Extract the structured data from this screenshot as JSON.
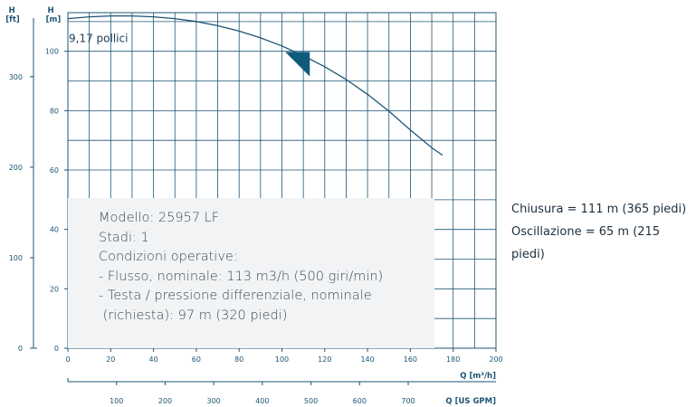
{
  "chart_data": {
    "type": "line",
    "title": "",
    "xlabel": "Q [m³/h]",
    "xlabel_secondary": "Q [US GPM]",
    "ylabel": "H\n[m]",
    "ylabel_secondary": "H\n[ft]",
    "xlim": [
      0,
      200
    ],
    "ylim": [
      0,
      113
    ],
    "x_ticks": [
      0,
      20,
      40,
      60,
      80,
      100,
      120,
      140,
      160,
      180,
      200
    ],
    "y_ticks": [
      0,
      20,
      40,
      60,
      80,
      100
    ],
    "x2_ticks": [
      100,
      200,
      300,
      400,
      500,
      600,
      700
    ],
    "y2_ticks": [
      0,
      100,
      200,
      300
    ],
    "grid": true,
    "series": [
      {
        "name": "9,17 pollici",
        "color": "#1d5575",
        "x": [
          0,
          10,
          20,
          30,
          40,
          50,
          60,
          70,
          80,
          90,
          100,
          110,
          120,
          130,
          140,
          150,
          160,
          170,
          175
        ],
        "y": [
          111,
          111.6,
          111.9,
          111.9,
          111.6,
          111,
          110,
          108.6,
          106.8,
          104.5,
          101.8,
          98.5,
          94.8,
          90.5,
          85.5,
          79.8,
          73.5,
          67.5,
          65
        ]
      }
    ],
    "marker": {
      "shape": "triangle",
      "x": 113,
      "y": 97,
      "color": "#0f5a7a"
    }
  },
  "info": {
    "lines": [
      "Modello: 25957 LF",
      "Stadi: 1",
      "Condizioni operative:",
      "- Flusso, nominale: 113 m3/h (500 giri/min)",
      "- Testa / pressione differenziale, nominale",
      " (richiesta): 97 m (320 piedi)"
    ]
  },
  "notes": {
    "shutoff": "Chiusura = 111 m (365 piedi)",
    "oscillation": "Oscillazione = 65 m (215 piedi)"
  }
}
